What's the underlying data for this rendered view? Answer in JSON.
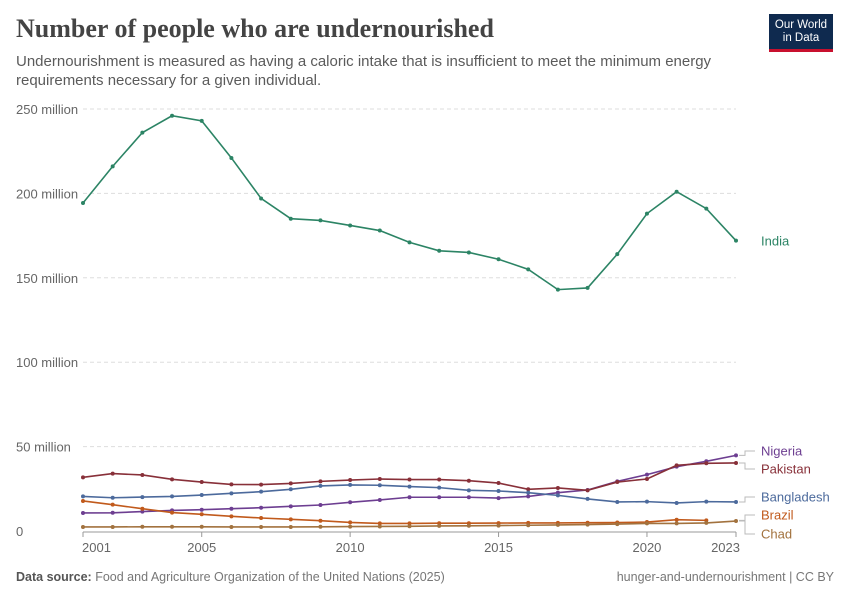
{
  "header": {
    "title": "Number of people who are undernourished",
    "subtitle": "Undernourishment is measured as having a caloric intake that is insufficient to meet the minimum energy requirements necessary for a given individual.",
    "logo": "Our World in Data"
  },
  "footer": {
    "source_label": "Data source:",
    "source": "Food and Agriculture Organization of the United Nations (2025)",
    "slug": "hunger-and-undernourishment | CC BY"
  },
  "chart_data": {
    "type": "line",
    "title": "Number of people who are undernourished",
    "x": [
      2001,
      2002,
      2003,
      2004,
      2005,
      2006,
      2007,
      2008,
      2009,
      2010,
      2011,
      2012,
      2013,
      2014,
      2015,
      2016,
      2017,
      2018,
      2019,
      2020,
      2021,
      2022,
      2023
    ],
    "xticks": [
      "2001",
      "2005",
      "2010",
      "2015",
      "2020",
      "2023"
    ],
    "yticks": [
      "0",
      "50 million",
      "100 million",
      "150 million",
      "200 million",
      "250 million"
    ],
    "ylim": [
      0,
      250000000
    ],
    "grid": "horizontal dashed",
    "legend": "inline-right",
    "series": [
      {
        "name": "India",
        "color": "#2c8465",
        "values": [
          194.3,
          216,
          236,
          246,
          243,
          221,
          197,
          185,
          184,
          181,
          178,
          171,
          166,
          165,
          161,
          155,
          143,
          144,
          164,
          188,
          201,
          191,
          172
        ]
      },
      {
        "name": "Nigeria",
        "color": "#6d3e91",
        "values": [
          10.7,
          10.8,
          11.5,
          12.2,
          12.6,
          13.2,
          13.8,
          14.6,
          15.4,
          17,
          18.4,
          20,
          20,
          20,
          19.5,
          20.5,
          22.7,
          24.3,
          29.4,
          33.4,
          38.1,
          41.3,
          44.8
        ]
      },
      {
        "name": "Pakistan",
        "color": "#883039",
        "values": [
          31.8,
          34,
          33.2,
          30.6,
          29,
          27.6,
          27.5,
          28.2,
          29.4,
          30.2,
          30.8,
          30.5,
          30.5,
          29.8,
          28.4,
          24.7,
          25.5,
          24.1,
          29,
          30.8,
          38.9,
          40.1,
          40.3
        ]
      },
      {
        "name": "Bangladesh",
        "color": "#4c6a9c",
        "values": [
          20.5,
          19.7,
          20.1,
          20.5,
          21.3,
          22.3,
          23.3,
          24.7,
          26.7,
          27.3,
          27.1,
          26.3,
          25.7,
          24.1,
          23.7,
          22.7,
          21.1,
          19,
          17.2,
          17.4,
          16.6,
          17.4,
          17.2
        ]
      },
      {
        "name": "Brazil",
        "color": "#c15a1c",
        "values": [
          17.8,
          15.6,
          13.2,
          10.9,
          9.9,
          8.7,
          7.7,
          6.9,
          6.1,
          5.1,
          4.5,
          4.5,
          4.6,
          4.6,
          4.7,
          4.8,
          4.8,
          4.9,
          5,
          5.3,
          6.7,
          6.3,
          null
        ]
      },
      {
        "name": "Chad",
        "color": "#a2723e",
        "values": [
          2.4,
          2.4,
          2.5,
          2.5,
          2.5,
          2.4,
          2.4,
          2.4,
          2.5,
          2.6,
          2.7,
          2.8,
          3,
          3.1,
          3.2,
          3.4,
          3.6,
          3.8,
          4.1,
          4.5,
          4.5,
          4.8,
          5.9
        ]
      }
    ],
    "unit": "million"
  }
}
